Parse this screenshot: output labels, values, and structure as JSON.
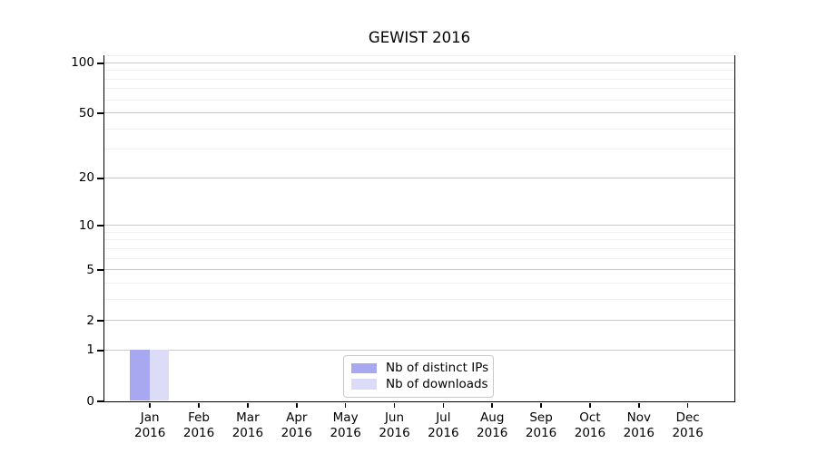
{
  "chart_data": {
    "type": "bar",
    "title": "GEWIST 2016",
    "categories": [
      "Jan",
      "Feb",
      "Mar",
      "Apr",
      "May",
      "Jun",
      "Jul",
      "Aug",
      "Sep",
      "Oct",
      "Nov",
      "Dec"
    ],
    "category_year": "2016",
    "series": [
      {
        "name": "Nb of distinct IPs",
        "color": "#a8a8f0",
        "values": [
          1,
          0,
          0,
          0,
          0,
          0,
          0,
          0,
          0,
          0,
          0,
          0
        ]
      },
      {
        "name": "Nb of downloads",
        "color": "#dcdcf9",
        "values": [
          1,
          0,
          0,
          0,
          0,
          0,
          0,
          0,
          0,
          0,
          0,
          0
        ]
      }
    ],
    "y_scale": "log1p",
    "ylim": [
      0,
      115
    ],
    "y_ticks": [
      0,
      1,
      2,
      5,
      10,
      20,
      50,
      100
    ],
    "y_minor_ticks": [
      3,
      4,
      6,
      7,
      8,
      9,
      30,
      40,
      60,
      70,
      80,
      90,
      110
    ],
    "grid": true,
    "legend_position": "lower center",
    "colors": {
      "major_grid": "#c9c9c9",
      "minor_grid": "#f0f0f0",
      "axis": "#000000",
      "background": "#ffffff"
    }
  }
}
